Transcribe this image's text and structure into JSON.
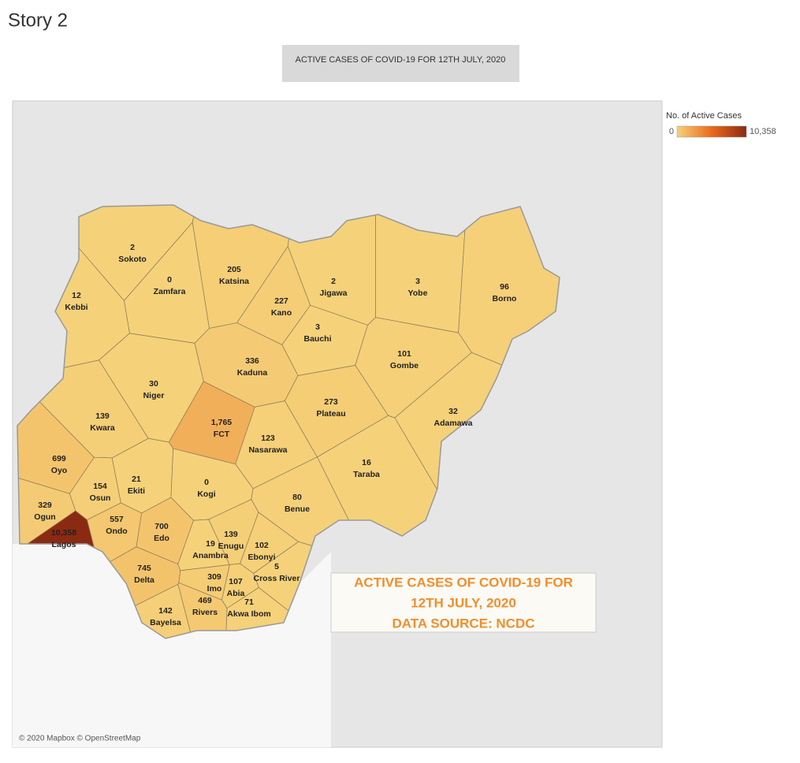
{
  "story_title": "Story 2",
  "caption": "ACTIVE CASES OF COVID-19 FOR 12TH JULY, 2020",
  "legend": {
    "title": "No. of Active Cases",
    "min": 0,
    "max": {
      "value": 10358,
      "label": "10,358"
    },
    "colors": [
      "#f5d27a",
      "#ea6a1c",
      "#8b2a12"
    ]
  },
  "states": [
    {
      "name": "Sokoto",
      "value": 2
    },
    {
      "name": "Zamfara",
      "value": 0
    },
    {
      "name": "Kebbi",
      "value": 12
    },
    {
      "name": "Katsina",
      "value": 205
    },
    {
      "name": "Kano",
      "value": 227
    },
    {
      "name": "Jigawa",
      "value": 2
    },
    {
      "name": "Yobe",
      "value": 3
    },
    {
      "name": "Borno",
      "value": 96
    },
    {
      "name": "Bauchi",
      "value": 3
    },
    {
      "name": "Gombe",
      "value": 101
    },
    {
      "name": "Kaduna",
      "value": 336
    },
    {
      "name": "Niger",
      "value": 30
    },
    {
      "name": "Kwara",
      "value": 139
    },
    {
      "name": "FCT",
      "value": {
        "value": 1765,
        "label": "1,765"
      }
    },
    {
      "name": "Nasarawa",
      "value": 123
    },
    {
      "name": "Plateau",
      "value": 273
    },
    {
      "name": "Adamawa",
      "value": 32
    },
    {
      "name": "Taraba",
      "value": 16
    },
    {
      "name": "Oyo",
      "value": 699
    },
    {
      "name": "Osun",
      "value": 154
    },
    {
      "name": "Ekiti",
      "value": 21
    },
    {
      "name": "Ogun",
      "value": 329
    },
    {
      "name": "Ondo",
      "value": 557
    },
    {
      "name": "Kogi",
      "value": 0
    },
    {
      "name": "Benue",
      "value": 80
    },
    {
      "name": "Edo",
      "value": 700
    },
    {
      "name": "Lagos",
      "value": {
        "value": 10358,
        "label": "10,358"
      }
    },
    {
      "name": "Delta",
      "value": 745
    },
    {
      "name": "Anambra",
      "value": 19
    },
    {
      "name": "Enugu",
      "value": 139
    },
    {
      "name": "Ebonyi",
      "value": 102
    },
    {
      "name": "Cross River",
      "value": 5
    },
    {
      "name": "Imo",
      "value": 309
    },
    {
      "name": "Abia",
      "value": 107
    },
    {
      "name": "Akwa Ibom",
      "value": 71
    },
    {
      "name": "Rivers",
      "value": 469
    },
    {
      "name": "Bayelsa",
      "value": 142
    }
  ],
  "annotation": [
    "ACTIVE CASES OF COVID-19 FOR",
    "12TH JULY, 2020",
    "DATA SOURCE: NCDC"
  ],
  "attribution": "© 2020 Mapbox © OpenStreetMap"
}
